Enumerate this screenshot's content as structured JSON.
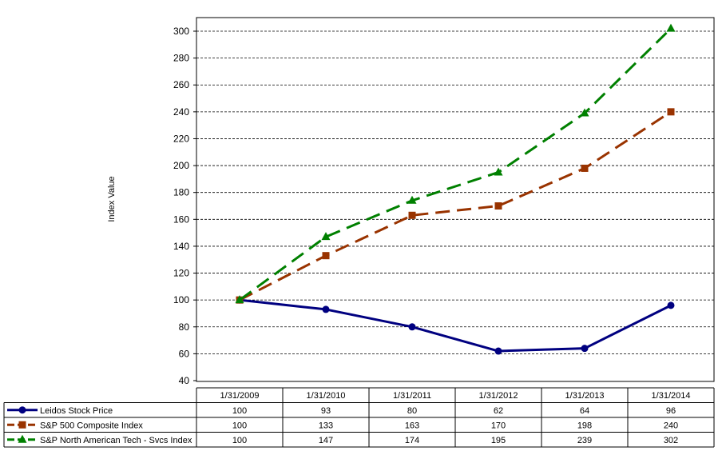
{
  "chart_data": {
    "type": "line",
    "title": "",
    "xlabel": "",
    "ylabel": "Index Value",
    "ylim": [
      40,
      300
    ],
    "y_ticks": [
      40,
      60,
      80,
      100,
      120,
      140,
      160,
      180,
      200,
      220,
      240,
      260,
      280,
      300
    ],
    "grid": true,
    "legend": "data-table",
    "categories": [
      "1/31/2009",
      "1/31/2010",
      "1/31/2011",
      "1/31/2012",
      "1/31/2013",
      "1/31/2014"
    ],
    "series": [
      {
        "name": "Leidos Stock Price",
        "values": [
          100,
          93,
          80,
          62,
          64,
          96
        ],
        "color": "#000080",
        "marker": "circle",
        "dash": "solid"
      },
      {
        "name": "S&P 500 Composite Index",
        "values": [
          100,
          133,
          163,
          170,
          198,
          240
        ],
        "color": "#993300",
        "marker": "square",
        "dash": "dashed"
      },
      {
        "name": "S&P North American Tech - Svcs Index",
        "values": [
          100,
          147,
          174,
          195,
          239,
          302
        ],
        "color": "#008000",
        "marker": "triangle",
        "dash": "dashed"
      }
    ]
  }
}
